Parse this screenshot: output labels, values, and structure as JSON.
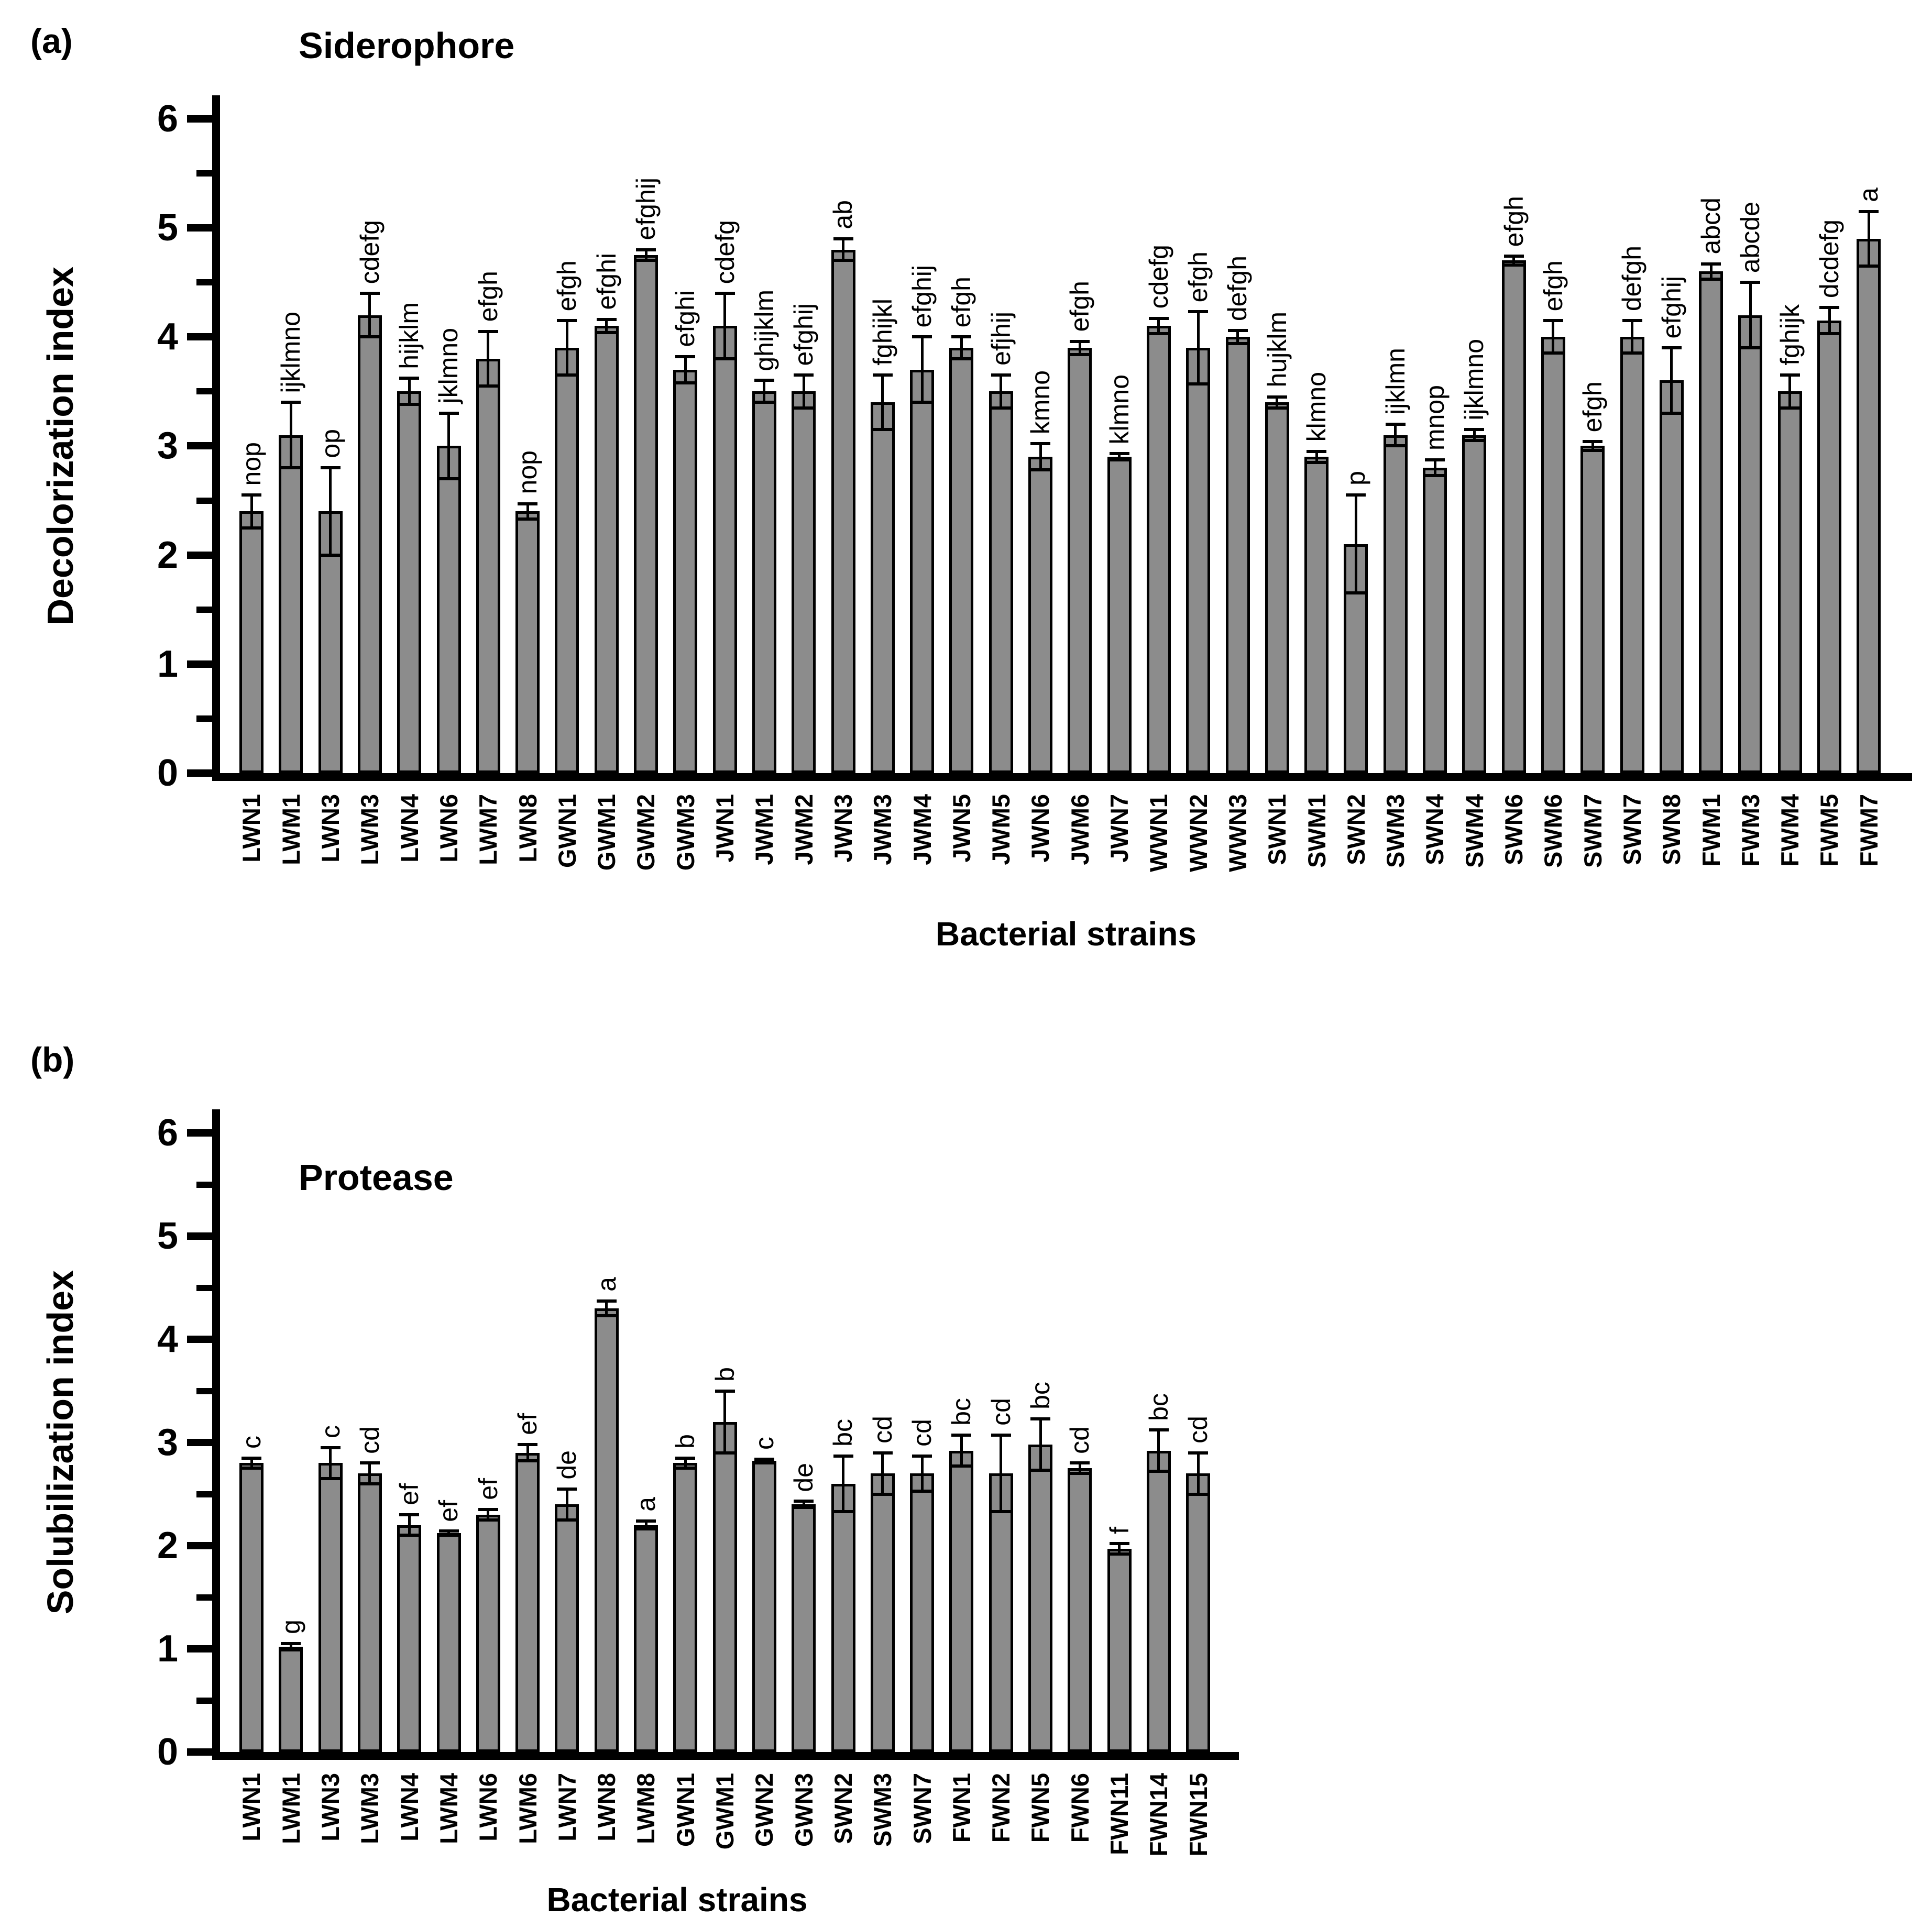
{
  "figure": {
    "panels": [
      {
        "tag": "(a)"
      },
      {
        "tag": "(b)"
      }
    ]
  },
  "chart_data": [
    {
      "type": "bar",
      "panel_label": "(a)",
      "title": "Siderophore",
      "xlabel": "Bacterial strains",
      "ylabel": "Decolorization index",
      "ylim": [
        0,
        6
      ],
      "ytick_step": 1,
      "grid": false,
      "legend": "none",
      "bar_color": "#8c8c8c",
      "categories": [
        "LWN1",
        "LWM1",
        "LWN3",
        "LWM3",
        "LWN4",
        "LWN6",
        "LWM7",
        "LWN8",
        "GWN1",
        "GWM1",
        "GWM2",
        "GWM3",
        "JWN1",
        "JWM1",
        "JWM2",
        "JWN3",
        "JWM3",
        "JWM4",
        "JWN5",
        "JWM5",
        "JWN6",
        "JWM6",
        "JWN7",
        "WWN1",
        "WWN2",
        "WWN3",
        "SWN1",
        "SWM1",
        "SWN2",
        "SWM3",
        "SWN4",
        "SWM4",
        "SWN6",
        "SWM6",
        "SWM7",
        "SWN7",
        "SWN8",
        "FWM1",
        "FWM3",
        "FWM4",
        "FWM5",
        "FWM7"
      ],
      "values": [
        2.4,
        3.1,
        2.4,
        4.2,
        3.5,
        3.0,
        3.8,
        2.4,
        3.9,
        4.1,
        4.75,
        3.7,
        4.1,
        3.5,
        3.5,
        4.8,
        3.4,
        3.7,
        3.9,
        3.5,
        2.9,
        3.9,
        2.9,
        4.1,
        3.9,
        4.0,
        3.4,
        2.9,
        2.1,
        3.1,
        2.8,
        3.1,
        4.7,
        4.0,
        3.0,
        4.0,
        3.6,
        4.6,
        4.2,
        3.5,
        4.15,
        4.9
      ],
      "errors": [
        0.15,
        0.3,
        0.4,
        0.2,
        0.12,
        0.3,
        0.25,
        0.07,
        0.25,
        0.06,
        0.05,
        0.12,
        0.3,
        0.1,
        0.15,
        0.1,
        0.25,
        0.3,
        0.1,
        0.15,
        0.12,
        0.06,
        0.03,
        0.07,
        0.33,
        0.06,
        0.05,
        0.05,
        0.45,
        0.1,
        0.07,
        0.05,
        0.04,
        0.15,
        0.04,
        0.15,
        0.3,
        0.07,
        0.3,
        0.15,
        0.12,
        0.25
      ],
      "sig_letters": [
        "nop",
        "ijklmno",
        "op",
        "cdefg",
        "hijklm",
        "jklmno",
        "efgh",
        "nop",
        "efgh",
        "efghi",
        "efghij",
        "efghi",
        "cdefg",
        "ghijklm",
        "efghij",
        "ab",
        "fghijkl",
        "efghij",
        "efgh",
        "efjhij",
        "kmno",
        "efgh",
        "klmno",
        "cdefg",
        "efgh",
        "defgh",
        "hujklm",
        "klmno",
        "p",
        "ijklmn",
        "mnop",
        "ijklmno",
        "efgh",
        "efgh",
        "efgh",
        "defgh",
        "efghij",
        "abcd",
        "abcde",
        "fghijk",
        "dcdefg",
        "a"
      ]
    },
    {
      "type": "bar",
      "panel_label": "(b)",
      "title": "Protease",
      "xlabel": "Bacterial strains",
      "ylabel": "Solubilization index",
      "ylim": [
        0,
        6
      ],
      "ytick_step": 1,
      "grid": false,
      "legend": "none",
      "bar_color": "#8c8c8c",
      "categories": [
        "LWN1",
        "LWM1",
        "LWN3",
        "LWM3",
        "LWN4",
        "LWM4",
        "LWN6",
        "LWM6",
        "LWN7",
        "LWN8",
        "LWM8",
        "GWN1",
        "GWM1",
        "GWN2",
        "GWN3",
        "SWN2",
        "SWM3",
        "SWN7",
        "FWN1",
        "FWN2",
        "FWN5",
        "FWN6",
        "FWN11",
        "FWN14",
        "FWN15"
      ],
      "values": [
        2.8,
        1.02,
        2.8,
        2.7,
        2.2,
        2.12,
        2.3,
        2.9,
        2.4,
        4.3,
        2.2,
        2.8,
        3.2,
        2.82,
        2.4,
        2.6,
        2.7,
        2.7,
        2.92,
        2.7,
        2.98,
        2.75,
        1.97,
        2.92,
        2.7
      ],
      "errors": [
        0.05,
        0.03,
        0.15,
        0.1,
        0.1,
        0.02,
        0.05,
        0.08,
        0.15,
        0.07,
        0.04,
        0.05,
        0.3,
        0.02,
        0.03,
        0.27,
        0.2,
        0.17,
        0.15,
        0.37,
        0.25,
        0.05,
        0.05,
        0.2,
        0.2
      ],
      "sig_letters": [
        "c",
        "g",
        "c",
        "cd",
        "ef",
        "ef",
        "ef",
        "ef",
        "de",
        "a",
        "a",
        "b",
        "b",
        "c",
        "de",
        "bc",
        "cd",
        "cd",
        "bc",
        "cd",
        "bc",
        "cd",
        "f",
        "bc",
        "cd"
      ]
    }
  ]
}
